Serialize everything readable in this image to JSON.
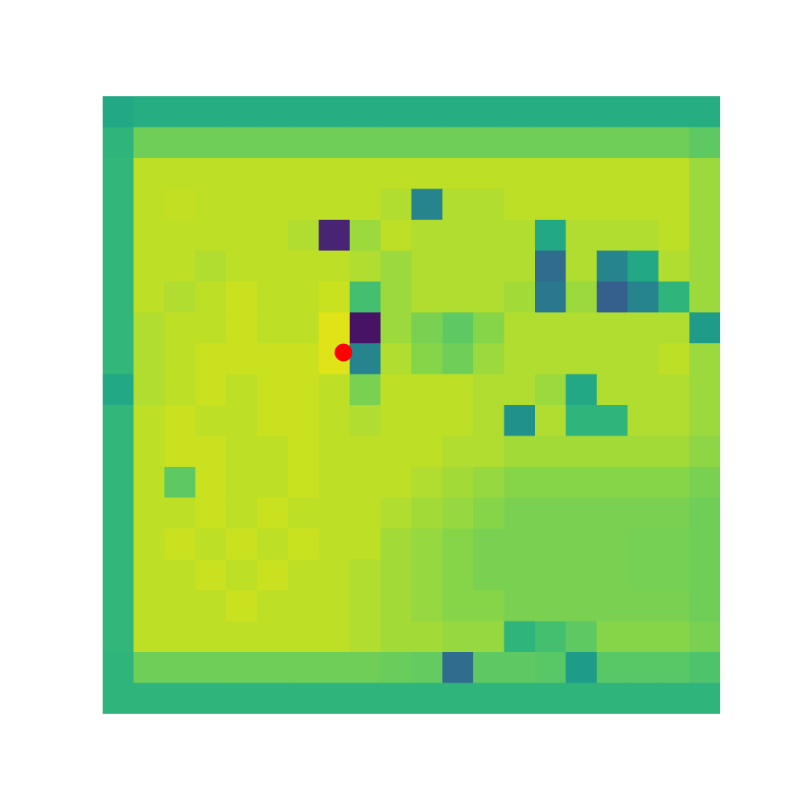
{
  "chart_data": {
    "type": "heatmap",
    "tick_labels": false,
    "xlim": [
      0,
      20
    ],
    "ylim": [
      20,
      0
    ],
    "color_range": [
      0,
      1
    ],
    "cells": [
      [
        0.6,
        0.62,
        0.62,
        0.62,
        0.62,
        0.62,
        0.62,
        0.62,
        0.62,
        0.62,
        0.62,
        0.62,
        0.62,
        0.62,
        0.62,
        0.62,
        0.62,
        0.62,
        0.62,
        0.62
      ],
      [
        0.65,
        0.78,
        0.78,
        0.78,
        0.78,
        0.78,
        0.78,
        0.78,
        0.78,
        0.78,
        0.78,
        0.78,
        0.78,
        0.78,
        0.78,
        0.78,
        0.78,
        0.78,
        0.78,
        0.75
      ],
      [
        0.66,
        0.9,
        0.9,
        0.9,
        0.9,
        0.9,
        0.9,
        0.9,
        0.9,
        0.9,
        0.9,
        0.9,
        0.9,
        0.9,
        0.9,
        0.9,
        0.9,
        0.9,
        0.9,
        0.85
      ],
      [
        0.66,
        0.9,
        0.91,
        0.9,
        0.9,
        0.9,
        0.9,
        0.9,
        0.9,
        0.88,
        0.45,
        0.88,
        0.88,
        0.9,
        0.9,
        0.9,
        0.9,
        0.9,
        0.9,
        0.85
      ],
      [
        0.66,
        0.9,
        0.9,
        0.9,
        0.9,
        0.9,
        0.88,
        0.1,
        0.85,
        0.9,
        0.88,
        0.88,
        0.88,
        0.88,
        0.6,
        0.88,
        0.88,
        0.88,
        0.9,
        0.85
      ],
      [
        0.66,
        0.9,
        0.9,
        0.88,
        0.9,
        0.9,
        0.9,
        0.9,
        0.88,
        0.85,
        0.88,
        0.88,
        0.88,
        0.88,
        0.35,
        0.88,
        0.45,
        0.6,
        0.88,
        0.85
      ],
      [
        0.66,
        0.9,
        0.88,
        0.9,
        0.92,
        0.9,
        0.9,
        0.92,
        0.7,
        0.85,
        0.88,
        0.88,
        0.88,
        0.86,
        0.4,
        0.85,
        0.3,
        0.45,
        0.65,
        0.85
      ],
      [
        0.66,
        0.88,
        0.9,
        0.9,
        0.92,
        0.9,
        0.9,
        0.95,
        0.05,
        0.85,
        0.8,
        0.75,
        0.82,
        0.88,
        0.88,
        0.88,
        0.88,
        0.88,
        0.88,
        0.55
      ],
      [
        0.66,
        0.88,
        0.9,
        0.92,
        0.92,
        0.92,
        0.92,
        0.95,
        0.45,
        0.88,
        0.82,
        0.78,
        0.85,
        0.88,
        0.88,
        0.88,
        0.88,
        0.88,
        0.9,
        0.85
      ],
      [
        0.6,
        0.88,
        0.9,
        0.92,
        0.9,
        0.92,
        0.92,
        0.9,
        0.8,
        0.9,
        0.9,
        0.9,
        0.88,
        0.88,
        0.85,
        0.6,
        0.88,
        0.88,
        0.88,
        0.85
      ],
      [
        0.66,
        0.9,
        0.92,
        0.9,
        0.9,
        0.92,
        0.92,
        0.9,
        0.88,
        0.9,
        0.9,
        0.9,
        0.88,
        0.5,
        0.88,
        0.65,
        0.65,
        0.88,
        0.88,
        0.85
      ],
      [
        0.66,
        0.9,
        0.92,
        0.92,
        0.9,
        0.9,
        0.92,
        0.9,
        0.9,
        0.9,
        0.9,
        0.88,
        0.88,
        0.86,
        0.86,
        0.86,
        0.86,
        0.86,
        0.86,
        0.83
      ],
      [
        0.66,
        0.9,
        0.75,
        0.92,
        0.9,
        0.9,
        0.92,
        0.9,
        0.9,
        0.9,
        0.88,
        0.86,
        0.84,
        0.82,
        0.82,
        0.82,
        0.82,
        0.82,
        0.82,
        0.8
      ],
      [
        0.66,
        0.9,
        0.9,
        0.92,
        0.9,
        0.92,
        0.9,
        0.9,
        0.9,
        0.88,
        0.86,
        0.84,
        0.82,
        0.8,
        0.8,
        0.8,
        0.8,
        0.8,
        0.8,
        0.78
      ],
      [
        0.66,
        0.9,
        0.92,
        0.9,
        0.92,
        0.9,
        0.92,
        0.9,
        0.9,
        0.86,
        0.84,
        0.82,
        0.8,
        0.8,
        0.8,
        0.8,
        0.8,
        0.79,
        0.79,
        0.78
      ],
      [
        0.66,
        0.9,
        0.9,
        0.92,
        0.9,
        0.92,
        0.9,
        0.9,
        0.88,
        0.86,
        0.84,
        0.82,
        0.8,
        0.8,
        0.8,
        0.8,
        0.8,
        0.79,
        0.79,
        0.78
      ],
      [
        0.66,
        0.9,
        0.9,
        0.9,
        0.92,
        0.9,
        0.9,
        0.9,
        0.88,
        0.86,
        0.84,
        0.82,
        0.82,
        0.8,
        0.8,
        0.8,
        0.8,
        0.8,
        0.8,
        0.78
      ],
      [
        0.66,
        0.9,
        0.9,
        0.9,
        0.9,
        0.9,
        0.9,
        0.9,
        0.88,
        0.86,
        0.86,
        0.84,
        0.84,
        0.65,
        0.7,
        0.75,
        0.82,
        0.82,
        0.82,
        0.8
      ],
      [
        0.65,
        0.78,
        0.78,
        0.78,
        0.78,
        0.78,
        0.78,
        0.78,
        0.78,
        0.77,
        0.76,
        0.35,
        0.75,
        0.75,
        0.74,
        0.55,
        0.74,
        0.74,
        0.74,
        0.72
      ],
      [
        0.65,
        0.65,
        0.65,
        0.65,
        0.65,
        0.65,
        0.65,
        0.65,
        0.65,
        0.65,
        0.65,
        0.65,
        0.65,
        0.65,
        0.65,
        0.65,
        0.65,
        0.65,
        0.65,
        0.65
      ]
    ],
    "points": {
      "x": [
        7.8
      ],
      "y": [
        8.3
      ],
      "color": "#ff0000",
      "marker": "circle"
    }
  }
}
